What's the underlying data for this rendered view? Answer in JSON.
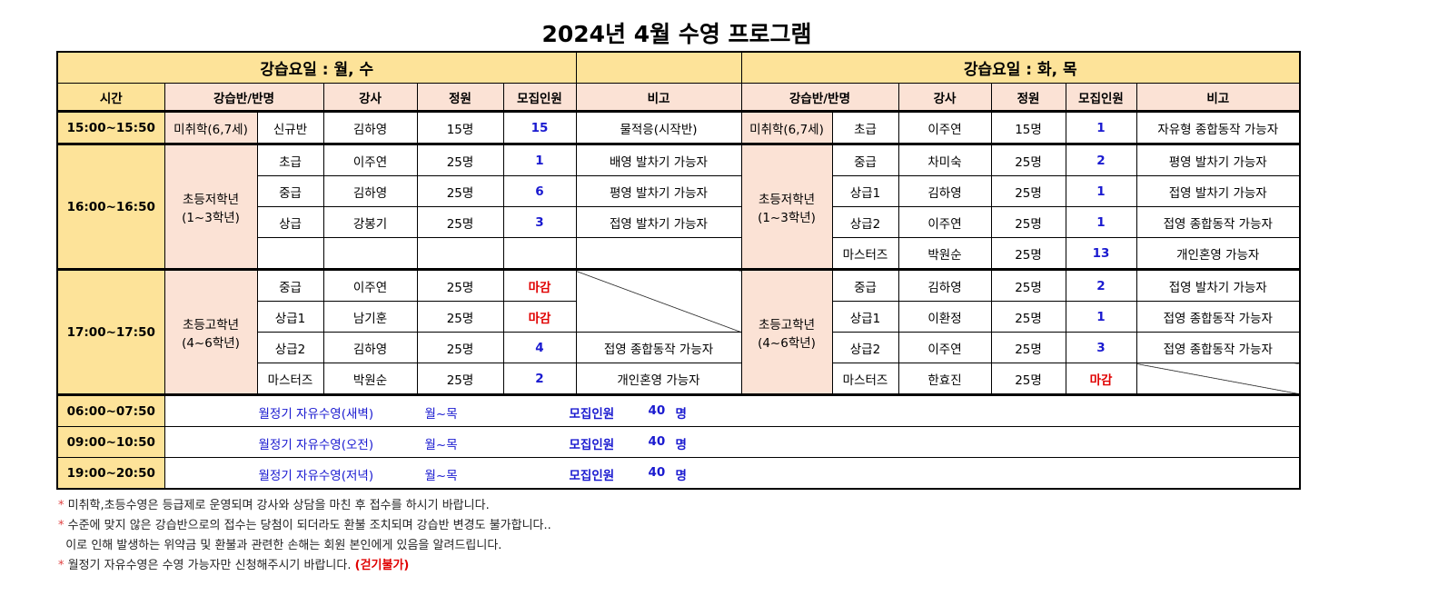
{
  "title": "2024년 4월 수영 프로그램",
  "left_title": "강습요일 :  월, 수",
  "right_title": "강습요일 : 화, 목",
  "headers": {
    "time": "시간",
    "class": "강습반/반명",
    "teacher": "강사",
    "capacity": "정원",
    "recruit": "모집인원",
    "note": "비고"
  },
  "rows": {
    "r1": {
      "time": "15:00~15:50",
      "lg": "미취학(6,7세)",
      "lc": "신규반",
      "lt": "김하영",
      "lcap": "15명",
      "lr": "15",
      "ln": "물적응(시작반)",
      "rg": "미취학(6,7세)",
      "rc": "초급",
      "rt": "이주연",
      "rcap": "15명",
      "rr": "1",
      "rn": "자유형 종합동작 가능자"
    },
    "g2": {
      "time": "16:00~16:50",
      "lg": "초등저학년\n(1~3학년)",
      "rg": "초등저학년\n(1~3학년)",
      "left": [
        {
          "c": "초급",
          "t": "이주연",
          "cap": "25명",
          "r": "1",
          "n": "배영 발차기 가능자"
        },
        {
          "c": "중급",
          "t": "김하영",
          "cap": "25명",
          "r": "6",
          "n": "평영 발차기 가능자"
        },
        {
          "c": "상급",
          "t": "강봉기",
          "cap": "25명",
          "r": "3",
          "n": "접영 발차기 가능자"
        }
      ],
      "right": [
        {
          "c": "중급",
          "t": "차미숙",
          "cap": "25명",
          "r": "2",
          "n": "평영 발차기 가능자"
        },
        {
          "c": "상급1",
          "t": "김하영",
          "cap": "25명",
          "r": "1",
          "n": "접영 발차기 가능자"
        },
        {
          "c": "상급2",
          "t": "이주연",
          "cap": "25명",
          "r": "1",
          "n": "접영 종합동작 가능자"
        },
        {
          "c": "마스터즈",
          "t": "박원순",
          "cap": "25명",
          "r": "13",
          "n": "개인혼영 가능자"
        }
      ]
    },
    "g3": {
      "time": "17:00~17:50",
      "lg": "초등고학년\n(4~6학년)",
      "rg": "초등고학년\n(4~6학년)",
      "left": [
        {
          "c": "중급",
          "t": "이주연",
          "cap": "25명",
          "r": "마감",
          "n": ""
        },
        {
          "c": "상급1",
          "t": "남기훈",
          "cap": "25명",
          "r": "마감",
          "n": ""
        },
        {
          "c": "상급2",
          "t": "김하영",
          "cap": "25명",
          "r": "4",
          "n": "접영 종합동작 가능자"
        },
        {
          "c": "마스터즈",
          "t": "박원순",
          "cap": "25명",
          "r": "2",
          "n": "개인혼영 가능자"
        }
      ],
      "right": [
        {
          "c": "중급",
          "t": "김하영",
          "cap": "25명",
          "r": "2",
          "n": "접영 발차기 가능자"
        },
        {
          "c": "상급1",
          "t": "이환정",
          "cap": "25명",
          "r": "1",
          "n": "접영 종합동작 가능자"
        },
        {
          "c": "상급2",
          "t": "이주연",
          "cap": "25명",
          "r": "3",
          "n": "접영 종합동작 가능자"
        },
        {
          "c": "마스터즈",
          "t": "한효진",
          "cap": "25명",
          "r": "마감",
          "n": ""
        }
      ]
    }
  },
  "free": [
    {
      "time": "06:00~07:50",
      "name": "월정기 자유수영(새벽)",
      "days": "월~목",
      "label": "모집인원",
      "count": "40",
      "unit": "명"
    },
    {
      "time": "09:00~10:50",
      "name": "월정기 자유수영(오전)",
      "days": "월~목",
      "label": "모집인원",
      "count": "40",
      "unit": "명"
    },
    {
      "time": "19:00~20:50",
      "name": "월정기 자유수영(저녁)",
      "days": "월~목",
      "label": "모집인원",
      "count": "40",
      "unit": "명"
    }
  ],
  "notes": [
    "미취학,초등수영은 등급제로 운영되며 강사와 상담을 마친 후 접수를 하시기 바랍니다.",
    "수준에 맞지 않은 강습반으로의 접수는 당첨이 되더라도 환불 조치되며 강습반 변경도 불가합니다..",
    "이로 인해 발생하는 위약금 및 환불과 관련한 손해는 회원 본인에게 있음을 알려드립니다.",
    "월정기 자유수영은 수영 가능자만 신청해주시기 바랍니다."
  ],
  "notes_warning": "(걷기불가)",
  "colors": {
    "header_yellow": "#fde399",
    "header_peach": "#fbe2d5",
    "blue": "#1a1ad0",
    "red": "#e00000"
  }
}
